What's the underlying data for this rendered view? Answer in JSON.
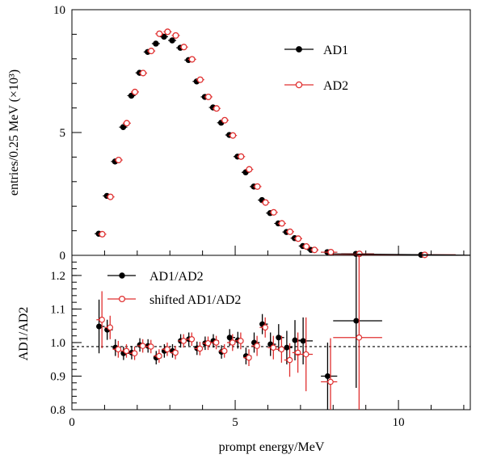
{
  "chart_data": [
    {
      "type": "scatter",
      "panel": "top",
      "ylabel": "entries/0.25 MeV  (×10³)",
      "xlim": [
        0,
        12.2
      ],
      "ylim": [
        0,
        10
      ],
      "yticks": [
        0,
        5,
        10
      ],
      "legend_placement": "top-right",
      "series": [
        {
          "name": "AD1",
          "color": "#000000",
          "marker": "filled-circle",
          "x": [
            0.875,
            1.125,
            1.375,
            1.625,
            1.875,
            2.125,
            2.375,
            2.625,
            2.875,
            3.125,
            3.375,
            3.625,
            3.875,
            4.125,
            4.375,
            4.625,
            4.875,
            5.125,
            5.375,
            5.625,
            5.875,
            6.125,
            6.375,
            6.625,
            6.875,
            7.125,
            7.375,
            7.875,
            8.75,
            10.75
          ],
          "y": [
            0.88,
            2.42,
            3.82,
            5.22,
            6.5,
            7.43,
            8.28,
            8.62,
            8.9,
            8.75,
            8.45,
            7.95,
            7.08,
            6.45,
            6.02,
            5.4,
            4.9,
            4.02,
            3.38,
            2.8,
            2.25,
            1.72,
            1.3,
            0.95,
            0.7,
            0.38,
            0.22,
            0.13,
            0.06,
            0.02
          ]
        },
        {
          "name": "AD2",
          "color": "#e03030",
          "marker": "open-circle",
          "x": [
            0.875,
            1.125,
            1.375,
            1.625,
            1.875,
            2.125,
            2.375,
            2.625,
            2.875,
            3.125,
            3.375,
            3.625,
            3.875,
            4.125,
            4.375,
            4.625,
            4.875,
            5.125,
            5.375,
            5.625,
            5.875,
            6.125,
            6.375,
            6.625,
            6.875,
            7.125,
            7.375,
            7.875,
            8.75,
            10.75
          ],
          "y": [
            0.86,
            2.38,
            3.88,
            5.38,
            6.65,
            7.42,
            8.32,
            9.02,
            9.1,
            8.95,
            8.48,
            7.98,
            7.15,
            6.45,
            5.98,
            5.5,
            4.88,
            4.02,
            3.5,
            2.8,
            2.15,
            1.75,
            1.3,
            0.96,
            0.68,
            0.36,
            0.22,
            0.13,
            0.06,
            0.02
          ]
        }
      ]
    },
    {
      "type": "scatter",
      "panel": "bottom",
      "xlabel": "prompt energy/MeV",
      "ylabel": "AD1/AD2",
      "xlim": [
        0,
        12.2
      ],
      "ylim": [
        0.8,
        1.26
      ],
      "xticks": [
        0,
        5,
        10
      ],
      "yticks": [
        0.8,
        0.9,
        1.0,
        1.1,
        1.2
      ],
      "ytick_labels": [
        "0.8",
        "0.9",
        "1.0",
        "1.1",
        "1.2"
      ],
      "reference_line": {
        "y": 0.988,
        "style": "dashed"
      },
      "legend_placement": "top-left",
      "series": [
        {
          "name": "AD1/AD2",
          "color": "#000000",
          "marker": "filled-circle",
          "x": [
            0.875,
            1.125,
            1.375,
            1.625,
            1.875,
            2.125,
            2.375,
            2.625,
            2.875,
            3.125,
            3.375,
            3.625,
            3.875,
            4.125,
            4.375,
            4.625,
            4.875,
            5.125,
            5.375,
            5.625,
            5.875,
            6.125,
            6.375,
            6.625,
            6.875,
            7.125,
            7.875,
            8.75
          ],
          "y": [
            1.048,
            1.038,
            0.985,
            0.968,
            0.97,
            0.993,
            0.99,
            0.955,
            0.975,
            0.975,
            1.005,
            1.01,
            0.983,
            0.998,
            1.005,
            0.972,
            1.015,
            1.007,
            0.96,
            1.0,
            1.055,
            0.995,
            1.015,
            0.985,
            1.007,
            1.005,
            0.9,
            1.065
          ],
          "yerr": [
            0.08,
            0.03,
            0.025,
            0.02,
            0.02,
            0.02,
            0.02,
            0.02,
            0.02,
            0.02,
            0.02,
            0.02,
            0.02,
            0.02,
            0.02,
            0.02,
            0.025,
            0.025,
            0.025,
            0.03,
            0.03,
            0.035,
            0.04,
            0.05,
            0.06,
            0.07,
            0.1,
            0.2
          ],
          "xerr": [
            0.125,
            0.125,
            0.125,
            0.125,
            0.125,
            0.125,
            0.125,
            0.125,
            0.125,
            0.125,
            0.125,
            0.125,
            0.125,
            0.125,
            0.125,
            0.125,
            0.125,
            0.125,
            0.125,
            0.125,
            0.125,
            0.125,
            0.125,
            0.125,
            0.125,
            0.25,
            0.25,
            0.75
          ]
        },
        {
          "name": "shifted AD1/AD2",
          "color": "#e03030",
          "marker": "open-circle",
          "x": [
            0.875,
            1.125,
            1.375,
            1.625,
            1.875,
            2.125,
            2.375,
            2.625,
            2.875,
            3.125,
            3.375,
            3.625,
            3.875,
            4.125,
            4.375,
            4.625,
            4.875,
            5.125,
            5.375,
            5.625,
            5.875,
            6.125,
            6.375,
            6.625,
            6.875,
            7.125,
            7.875,
            8.75
          ],
          "y": [
            1.068,
            1.045,
            0.98,
            0.975,
            0.968,
            0.99,
            0.988,
            0.96,
            0.98,
            0.97,
            1.005,
            1.01,
            0.982,
            0.998,
            1.0,
            0.975,
            1.0,
            1.005,
            0.955,
            0.99,
            1.045,
            0.985,
            0.98,
            0.948,
            0.97,
            0.965,
            0.883,
            1.015
          ],
          "yerr": [
            0.085,
            0.035,
            0.025,
            0.02,
            0.02,
            0.02,
            0.02,
            0.02,
            0.02,
            0.02,
            0.02,
            0.02,
            0.02,
            0.02,
            0.02,
            0.02,
            0.025,
            0.025,
            0.025,
            0.03,
            0.03,
            0.035,
            0.04,
            0.05,
            0.06,
            0.11,
            0.13,
            0.3
          ],
          "xerr": [
            0.125,
            0.125,
            0.125,
            0.125,
            0.125,
            0.125,
            0.125,
            0.125,
            0.125,
            0.125,
            0.125,
            0.125,
            0.125,
            0.125,
            0.125,
            0.125,
            0.125,
            0.125,
            0.125,
            0.125,
            0.125,
            0.125,
            0.125,
            0.125,
            0.125,
            0.25,
            0.25,
            0.75
          ]
        }
      ]
    }
  ]
}
